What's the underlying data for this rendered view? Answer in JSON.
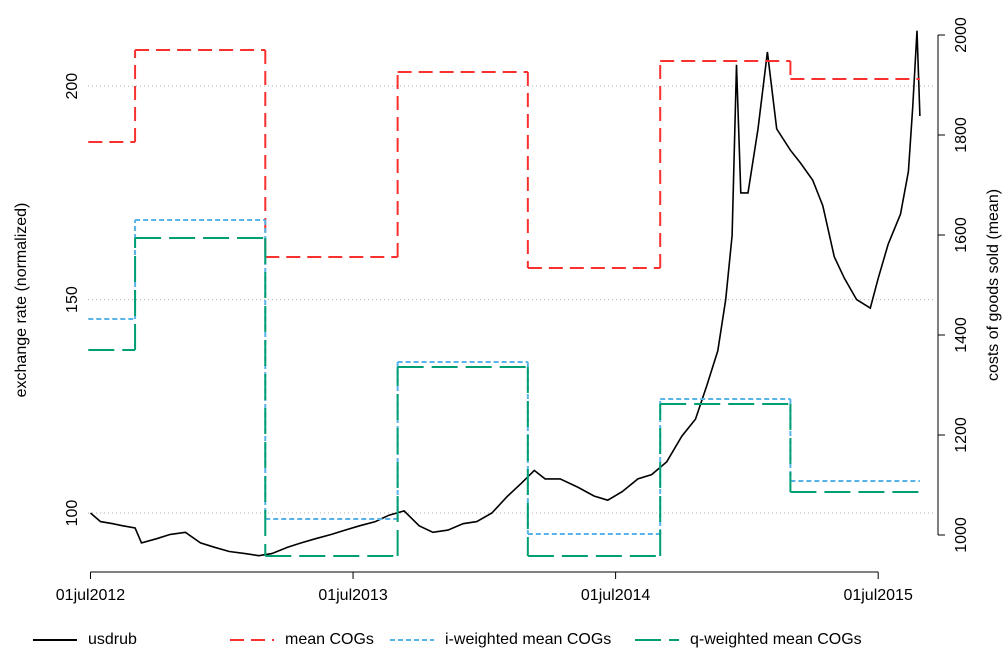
{
  "chart_data": {
    "type": "line",
    "ylabel": "exchange rate (normalized)",
    "y2label": "costs of goods sold (mean)",
    "xlim": [
      "2012-06-22",
      "2015-09-18"
    ],
    "xticks": [
      {
        "value": "2012-07-01",
        "label": "01jul2012"
      },
      {
        "value": "2013-07-01",
        "label": "01jul2013"
      },
      {
        "value": "2014-07-01",
        "label": "01jul2014"
      },
      {
        "value": "2015-07-01",
        "label": "01jul2015"
      }
    ],
    "ylim": [
      89,
      215.5
    ],
    "yticks": [
      100,
      150,
      200
    ],
    "y2lim": [
      950,
      2030
    ],
    "y2ticks": [
      1000,
      1200,
      1400,
      1600,
      1800,
      2000
    ],
    "grid": true,
    "legend": "bottom",
    "series": [
      {
        "name": "usdrub",
        "color": "#000000",
        "linestyle": "solid",
        "x": [
          "2012-07-01",
          "2012-07-15",
          "2012-08-01",
          "2012-08-15",
          "2012-09-01",
          "2012-09-10",
          "2012-10-01",
          "2012-10-20",
          "2012-11-10",
          "2012-12-01",
          "2012-12-20",
          "2013-01-10",
          "2013-02-01",
          "2013-02-20",
          "2013-03-10",
          "2013-04-01",
          "2013-04-20",
          "2013-05-10",
          "2013-06-01",
          "2013-06-20",
          "2013-07-10",
          "2013-08-01",
          "2013-08-20",
          "2013-09-10",
          "2013-10-01",
          "2013-10-20",
          "2013-11-10",
          "2013-12-01",
          "2013-12-20",
          "2014-01-10",
          "2014-02-01",
          "2014-02-20",
          "2014-03-10",
          "2014-03-25",
          "2014-04-15",
          "2014-05-10",
          "2014-06-01",
          "2014-06-20",
          "2014-07-10",
          "2014-08-01",
          "2014-08-20",
          "2014-09-10",
          "2014-10-01",
          "2014-10-20",
          "2014-11-05",
          "2014-11-20",
          "2014-12-01",
          "2014-12-10",
          "2014-12-16",
          "2014-12-22",
          "2015-01-01",
          "2015-01-15",
          "2015-01-28",
          "2015-02-10",
          "2015-03-01",
          "2015-03-15",
          "2015-04-01",
          "2015-04-15",
          "2015-05-01",
          "2015-05-15",
          "2015-06-01",
          "2015-06-20",
          "2015-07-01",
          "2015-07-15",
          "2015-08-01",
          "2015-08-12",
          "2015-08-18",
          "2015-08-24",
          "2015-08-28"
        ],
        "values": [
          100,
          98,
          97.5,
          97,
          96.5,
          93,
          94,
          95,
          95.5,
          93,
          92,
          91,
          90.5,
          90,
          90.5,
          92,
          93,
          94,
          95,
          96,
          97,
          98,
          99.5,
          100.5,
          97,
          95.5,
          96,
          97.5,
          98,
          100,
          104,
          107,
          110,
          108,
          108,
          106,
          104,
          103,
          105,
          108,
          109,
          112,
          118,
          122,
          130,
          138,
          150,
          165,
          205,
          175,
          175,
          190,
          208,
          190,
          185,
          182,
          178,
          172,
          160,
          155,
          150,
          148,
          155,
          163,
          170,
          180,
          195,
          213,
          193
        ]
      },
      {
        "name": "mean COGs",
        "color": "#f8312f",
        "linestyle": "dashed",
        "axis": "y2",
        "edges": [
          "2012-06-28",
          "2012-09-01",
          "2013-03-01",
          "2013-09-01",
          "2014-03-01",
          "2014-09-01",
          "2015-03-01",
          "2015-08-28"
        ],
        "values": [
          1786,
          1970,
          1556,
          1926,
          1534,
          1948,
          1912
        ]
      },
      {
        "name": "i-weighted mean COGs",
        "color": "#56b4e9",
        "linestyle": "dotted",
        "axis": "y2",
        "edges": [
          "2012-06-28",
          "2012-09-01",
          "2013-03-01",
          "2013-09-01",
          "2014-03-01",
          "2014-09-01",
          "2015-03-01",
          "2015-08-28"
        ],
        "values": [
          1432,
          1630,
          1032,
          1346,
          1002,
          1272,
          1108
        ]
      },
      {
        "name": "q-weighted mean COGs",
        "color": "#009e73",
        "linestyle": "longdash",
        "axis": "y2",
        "edges": [
          "2012-06-28",
          "2012-09-01",
          "2013-03-01",
          "2013-09-01",
          "2014-03-01",
          "2014-09-01",
          "2015-03-01",
          "2015-08-28"
        ],
        "values": [
          1370,
          1594,
          958,
          1336,
          958,
          1262,
          1086
        ]
      }
    ]
  }
}
